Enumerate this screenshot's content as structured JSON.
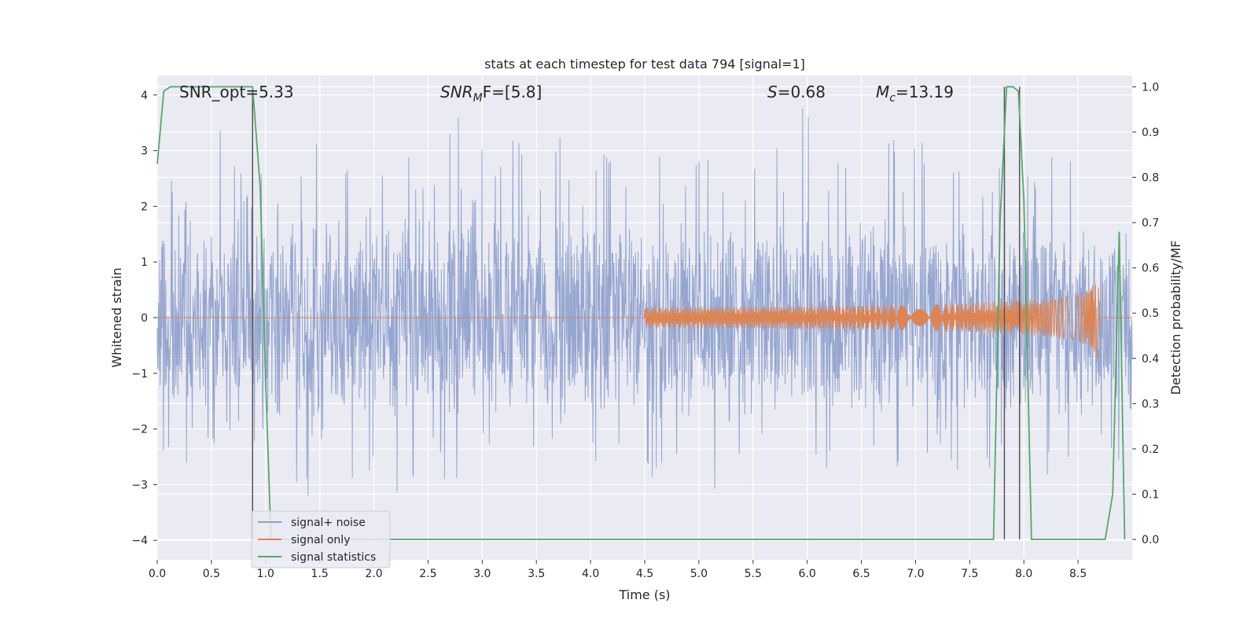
{
  "chart_data": {
    "type": "line",
    "title": "stats at each timestep for test data 794 [signal=1]",
    "xlabel": "Time (s)",
    "ylabel_left": "Whitened strain",
    "ylabel_right": "Detection probability/MF",
    "xlim": [
      0.0,
      9.0
    ],
    "ylim_left": [
      -4.35,
      4.35
    ],
    "ylim_right": [
      -0.045,
      1.025
    ],
    "x_ticks": [
      "0.0",
      "0.5",
      "1.0",
      "1.5",
      "2.0",
      "2.5",
      "3.0",
      "3.5",
      "4.0",
      "4.5",
      "5.0",
      "5.5",
      "6.0",
      "6.5",
      "7.0",
      "7.5",
      "8.0",
      "8.5"
    ],
    "y_left_ticks": [
      "4",
      "3",
      "2",
      "1",
      "0",
      "−1",
      "−2",
      "−3",
      "−4"
    ],
    "y_right_ticks": [
      "1.0",
      "0.9",
      "0.8",
      "0.7",
      "0.6",
      "0.5",
      "0.4",
      "0.3",
      "0.2",
      "0.1",
      "0.0"
    ],
    "grid": true,
    "legend_position": "lower-left",
    "annotations": {
      "snr_opt": "SNR_opt=5.33",
      "snr_mf_main": "SNR",
      "snr_mf_sub": "M",
      "snr_mf_rest": "F=[5.8]",
      "s_main": "S",
      "s_rest": "=0.68",
      "mc_main": "M",
      "mc_sub": "c",
      "mc_rest": "=13.19"
    },
    "series": [
      {
        "name": "signal+ noise",
        "color": "#8c9fcc",
        "axis": "left",
        "description_points": "noise envelope approx between -2.6 and 2.8 with spikes up to 4",
        "envelope_upper_peaks": [
          2.5,
          2.2,
          2.7,
          3.6,
          2.9,
          2.3,
          2.8,
          2.2,
          2.6,
          3.2,
          2.4,
          2.9,
          2.1,
          2.7,
          3.0,
          2.5,
          2.6,
          3.7,
          2.4,
          3.2,
          2.8,
          3.3,
          2.6,
          3.4,
          2.5,
          2.2,
          3.0,
          2.4,
          2.7,
          3.1,
          2.3,
          2.6,
          3.0,
          2.5,
          2.2,
          2.8,
          3.1,
          2.4,
          4.0,
          2.6,
          2.9,
          3.3,
          2.4,
          3.5,
          2.5,
          3.2,
          2.1,
          3.0,
          2.6,
          2.3,
          3.1,
          2.8,
          2.5,
          2.9,
          3.2,
          2.7,
          2.4,
          2.6
        ],
        "envelope_lower_peaks": [
          -2.4,
          -2.7,
          -2.2,
          -2.4,
          -2.1,
          -2.6,
          -2.3,
          -2.0,
          -3.3,
          -2.2,
          -2.5,
          -3.0,
          -2.8,
          -3.1,
          -3.6,
          -2.9,
          -2.5,
          -3.0,
          -2.7,
          -2.4,
          -2.9,
          -3.2,
          -2.5,
          -2.2,
          -2.8,
          -2.6,
          -3.0,
          -2.4,
          -2.7,
          -2.9,
          -2.5,
          -2.6,
          -2.3,
          -3.1,
          -2.7,
          -2.4,
          -2.9,
          -3.3,
          -2.5,
          -2.8,
          -2.6,
          -3.2,
          -2.4,
          -2.7,
          -3.0,
          -2.6,
          -2.3,
          -2.8,
          -2.5,
          -2.9,
          -2.4,
          -2.6,
          -3.0,
          -2.7,
          -2.5,
          -2.2,
          -2.4,
          -2.6
        ]
      },
      {
        "name": "signal only",
        "color": "#dd8452",
        "axis": "left",
        "chirp_start_x": 4.5,
        "chirp_end_x": 8.7,
        "chirp_peak_amplitude": 0.9
      },
      {
        "name": "signal statistics",
        "color": "#55a868",
        "axis": "right",
        "x": [
          0.0,
          0.06,
          0.12,
          0.2,
          0.4,
          0.6,
          0.8,
          0.88,
          0.95,
          1.0,
          1.05,
          1.2,
          2.0,
          3.0,
          4.0,
          5.0,
          6.0,
          7.0,
          7.6,
          7.72,
          7.78,
          7.84,
          7.9,
          7.95,
          8.0,
          8.07,
          8.2,
          8.5,
          8.75,
          8.82,
          8.88,
          8.93
        ],
        "y": [
          0.83,
          0.99,
          1.0,
          1.0,
          1.0,
          1.0,
          1.0,
          1.0,
          0.78,
          0.35,
          0.0,
          0.0,
          0.0,
          0.0,
          0.0,
          0.0,
          0.0,
          0.0,
          0.0,
          0.0,
          0.7,
          1.0,
          1.0,
          0.99,
          0.75,
          0.0,
          0.0,
          0.0,
          0.0,
          0.1,
          0.68,
          0.0
        ]
      }
    ],
    "vertical_markers_x": [
      0.88,
      7.82,
      7.96
    ],
    "legend_entries": [
      "signal+ noise",
      "signal only",
      "signal statistics"
    ],
    "colors": {
      "plot_background": "#eaeaf2",
      "grid": "#ffffff",
      "marker_line": "#555555"
    }
  }
}
